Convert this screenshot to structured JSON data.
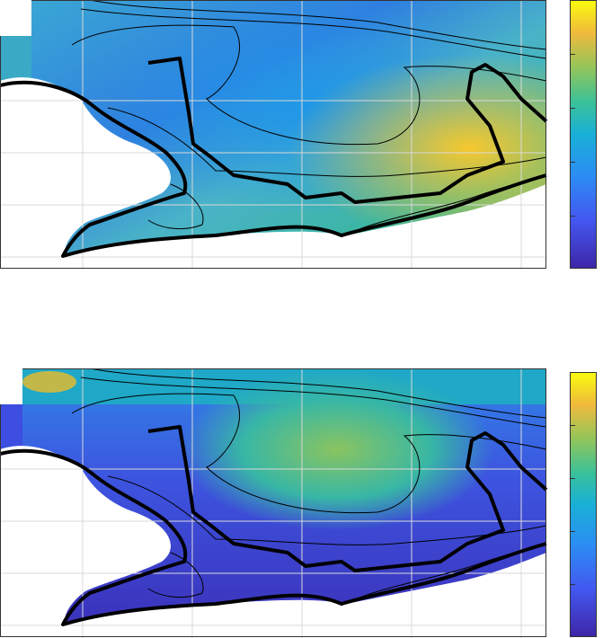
{
  "figure": {
    "panels": [
      {
        "id": "top",
        "description_colormap": "parula",
        "colorbar_ticks": 5
      },
      {
        "id": "bottom",
        "description_colormap": "parula",
        "colorbar_ticks": 5
      }
    ],
    "colors": {
      "land_fill": "#ffffff",
      "grid": "#d9d9d9",
      "contour": "#000000",
      "parula_low": "#3e26a8",
      "parula_mid": "#20b2aa",
      "parula_high": "#f9fb0e"
    }
  }
}
